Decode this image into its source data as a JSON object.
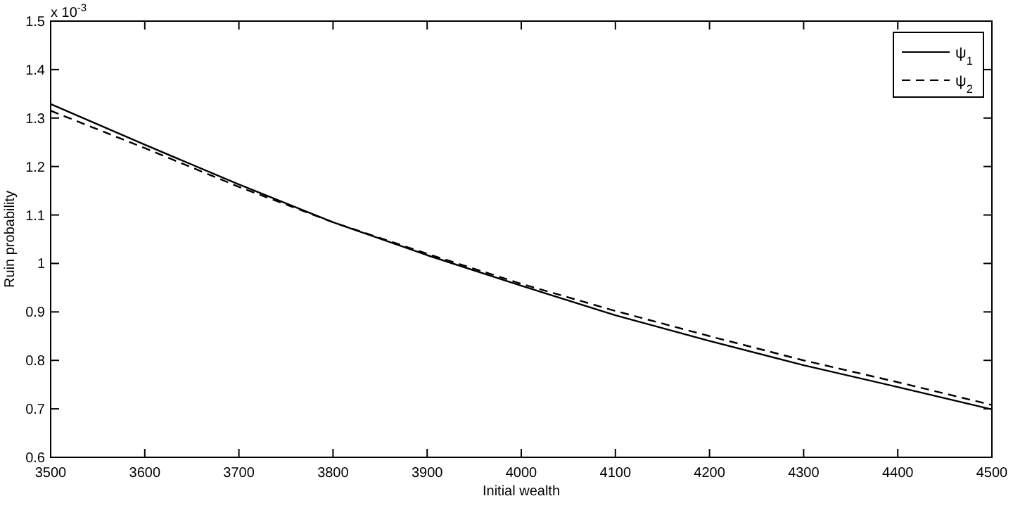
{
  "chart_data": {
    "type": "line",
    "xlabel": "Initial wealth",
    "ylabel": "Ruin probability",
    "annotations": [
      "x 10$^{-3}$"
    ],
    "x": [
      3500,
      3600,
      3700,
      3800,
      3900,
      4000,
      4100,
      4200,
      4300,
      4400,
      4500
    ],
    "series": [
      {
        "name": "ψ$_{1}$",
        "color": "#000000",
        "line_style": "solid",
        "values": [
          1.329,
          1.245,
          1.163,
          1.085,
          1.017,
          0.954,
          0.893,
          0.84,
          0.79,
          0.745,
          0.699
        ]
      },
      {
        "name": "ψ$_{2}$",
        "color": "#000000",
        "line_style": "dashed",
        "values": [
          1.315,
          1.238,
          1.158,
          1.085,
          1.02,
          0.958,
          0.902,
          0.85,
          0.8,
          0.755,
          0.708
        ]
      }
    ],
    "xlim": [
      3500,
      4500
    ],
    "xticks": [
      3500,
      3600,
      3700,
      3800,
      3900,
      4000,
      4100,
      4200,
      4300,
      4400,
      4500
    ],
    "ylim": [
      0.6,
      1.5
    ],
    "yticks": [
      0.6,
      0.7,
      0.8,
      0.9,
      1,
      1.1,
      1.2,
      1.3,
      1.4,
      1.5
    ],
    "grid": false,
    "legend": "top right"
  }
}
